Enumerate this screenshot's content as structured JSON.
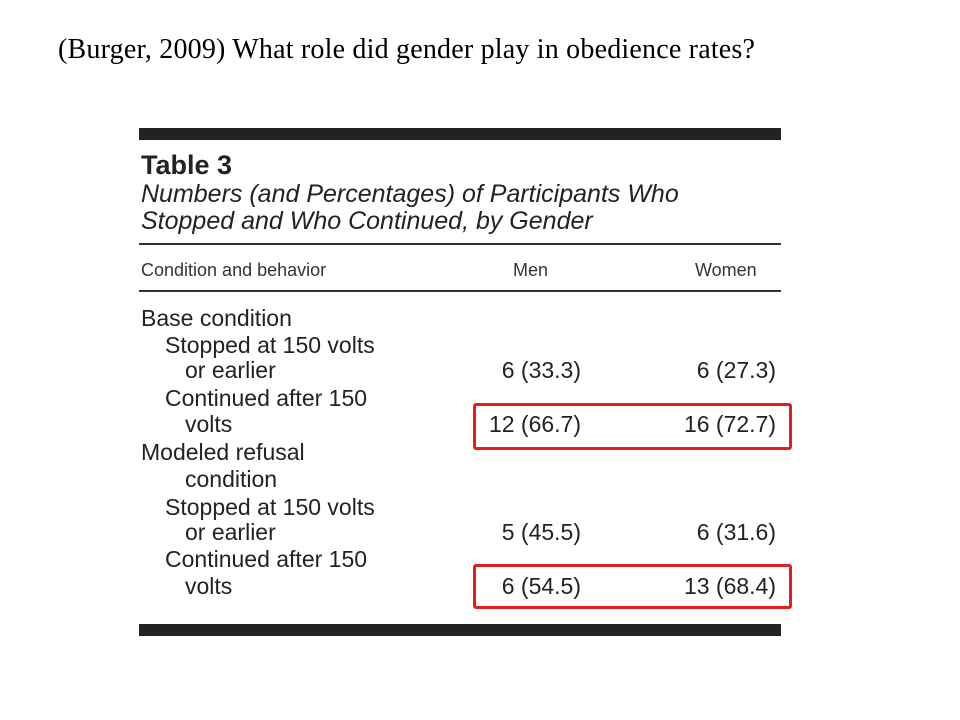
{
  "slide": {
    "title": "(Burger, 2009) What role did gender play in obedience rates?"
  },
  "table": {
    "label": "Table 3",
    "caption_line1": "Numbers (and Percentages) of Participants Who",
    "caption_line2": "Stopped and Who Continued, by Gender",
    "columns": {
      "condition": "Condition and behavior",
      "men": "Men",
      "women": "Women"
    },
    "base_condition": {
      "label": "Base condition",
      "stopped_line1": "Stopped at 150 volts",
      "stopped_line2": "or earlier",
      "stopped_men": "6 (33.3)",
      "stopped_women": "6 (27.3)",
      "continued_line1": "Continued after 150",
      "continued_line2": "volts",
      "continued_men": "12 (66.7)",
      "continued_women": "16 (72.7)"
    },
    "modeled_refusal": {
      "label_line1": "Modeled refusal",
      "label_line2": "condition",
      "stopped_line1": "Stopped at 150 volts",
      "stopped_line2": "or earlier",
      "stopped_men": "5 (45.5)",
      "stopped_women": "6 (31.6)",
      "continued_line1": "Continued after 150",
      "continued_line2": "volts",
      "continued_men": "6 (54.5)",
      "continued_women": "13 (68.4)"
    }
  },
  "highlights": {
    "color": "#e02020"
  }
}
